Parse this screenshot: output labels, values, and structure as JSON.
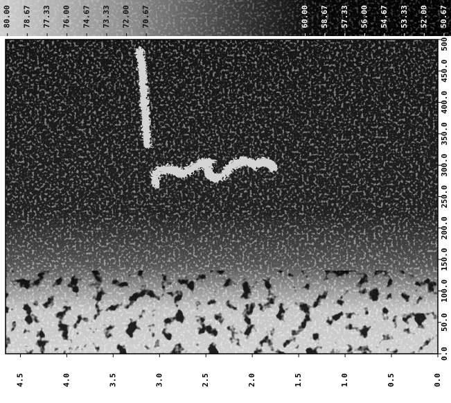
{
  "chart_data": {
    "type": "heatmap",
    "colorbar": {
      "clim": [
        80.5,
        50.2
      ],
      "ticks": [
        {
          "value": 80,
          "label": "80.00"
        },
        78.67,
        77.33,
        {
          "value": 76,
          "label": "76.00"
        },
        74.67,
        73.33,
        {
          "value": 72,
          "label": "72.00"
        },
        70.67,
        {
          "value": 60,
          "label": "60.00"
        },
        58.67,
        57.33,
        {
          "value": 56,
          "label": "56.00"
        },
        54.67,
        53.33,
        {
          "value": 52,
          "label": "52.00"
        },
        50.67
      ]
    },
    "xlim": [
      4.66,
      0
    ],
    "xticks": [
      {
        "value": 0,
        "label": "0.0"
      },
      0.5,
      {
        "value": 1,
        "label": "1.0"
      },
      1.5,
      {
        "value": 2,
        "label": "2.0"
      },
      2.5,
      {
        "value": 3,
        "label": "3.0"
      },
      3.5,
      {
        "value": 4,
        "label": "4.0"
      },
      4.5
    ],
    "ylim": [
      0,
      500
    ],
    "yticks": [
      {
        "value": 0,
        "label": "0.0"
      },
      {
        "value": 50,
        "label": "50.0"
      },
      {
        "value": 100,
        "label": "100.0"
      },
      {
        "value": 150,
        "label": "150.0"
      },
      {
        "value": 200,
        "label": "200.0"
      },
      {
        "value": 250,
        "label": "250.0"
      },
      {
        "value": 300,
        "label": "300.0"
      },
      {
        "value": 350,
        "label": "350.0"
      },
      {
        "value": 400,
        "label": "400.0"
      },
      {
        "value": 450,
        "label": "450.0"
      },
      {
        "value": 500,
        "label": "500.0"
      }
    ]
  }
}
